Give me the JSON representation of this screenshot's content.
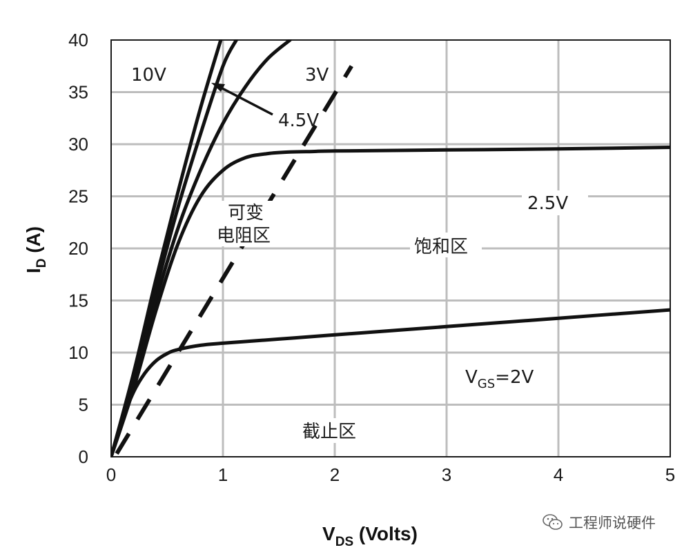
{
  "chart_data": {
    "type": "line",
    "xlabel": {
      "main": "V",
      "sub": "DS",
      "rest": " (Volts)"
    },
    "ylabel": {
      "main": "I",
      "sub": "D",
      "rest": " (A)"
    },
    "xlim": [
      0,
      5
    ],
    "ylim": [
      0,
      40
    ],
    "x_ticks": [
      "0",
      "1",
      "2",
      "3",
      "4",
      "5"
    ],
    "y_ticks": [
      "0",
      "5",
      "10",
      "15",
      "20",
      "25",
      "30",
      "35",
      "40"
    ],
    "grid": true,
    "series": [
      {
        "name": "10V",
        "x": [
          0,
          0.2,
          0.4,
          0.6,
          0.8,
          0.98
        ],
        "y": [
          0,
          8,
          17,
          25.5,
          33.5,
          40
        ]
      },
      {
        "name": "4.5V",
        "x": [
          0,
          0.2,
          0.4,
          0.6,
          0.8,
          1.0,
          1.12
        ],
        "y": [
          0,
          7.5,
          16,
          24,
          31,
          37.5,
          40
        ]
      },
      {
        "name": "3V",
        "x": [
          0,
          0.2,
          0.4,
          0.6,
          0.8,
          1.0,
          1.2,
          1.4,
          1.6
        ],
        "y": [
          0,
          7,
          15,
          22,
          27.5,
          32,
          35.5,
          38.2,
          40
        ]
      },
      {
        "name": "2.5V",
        "x": [
          0,
          0.2,
          0.4,
          0.6,
          0.8,
          1.0,
          1.2,
          1.4,
          1.6,
          1.8,
          2.0,
          3.0,
          4.0,
          5.0
        ],
        "y": [
          0,
          6.5,
          14,
          20.5,
          25,
          27.5,
          28.7,
          29.1,
          29.25,
          29.3,
          29.35,
          29.45,
          29.55,
          29.7
        ]
      },
      {
        "name": "VGS=2V",
        "x": [
          0,
          0.1,
          0.2,
          0.3,
          0.4,
          0.5,
          0.6,
          0.8,
          1.0,
          1.5,
          2.0,
          3.0,
          4.0,
          5.0
        ],
        "y": [
          0,
          3.5,
          6.2,
          8.0,
          9.2,
          9.9,
          10.3,
          10.7,
          10.9,
          11.3,
          11.7,
          12.5,
          13.3,
          14.1
        ]
      }
    ],
    "boundary": {
      "style": "dashed",
      "x": [
        0.05,
        2.15
      ],
      "y": [
        0.3,
        37.5
      ]
    },
    "annotations": {
      "10V": "10V",
      "3V": "3V",
      "4_5V": "4.5V",
      "2_5V": "2.5V",
      "vgs": {
        "main": "V",
        "sub": "GS",
        "rest": "=2V"
      },
      "linear_region_line1": "可变",
      "linear_region_line2": "电阻区",
      "saturation_region": "饱和区",
      "cutoff_region": "截止区"
    }
  },
  "watermark": {
    "text": "工程师说硬件",
    "icon": "wechat-icon"
  }
}
